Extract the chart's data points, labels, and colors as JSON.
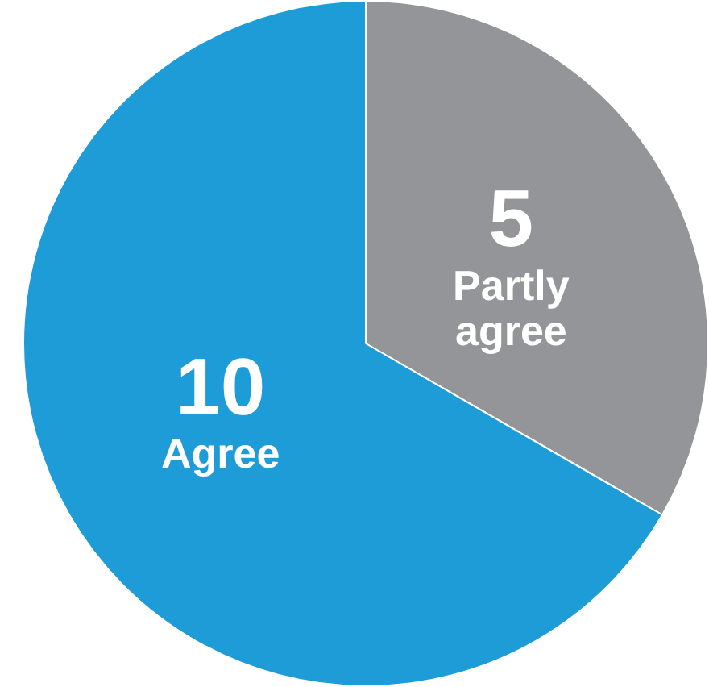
{
  "chart_data": {
    "type": "pie",
    "categories": [
      "Partly agree",
      "Agree"
    ],
    "values": [
      5,
      10
    ],
    "colors": [
      "#939598",
      "#1e9cd7"
    ],
    "data_labels": true,
    "legend": false
  }
}
